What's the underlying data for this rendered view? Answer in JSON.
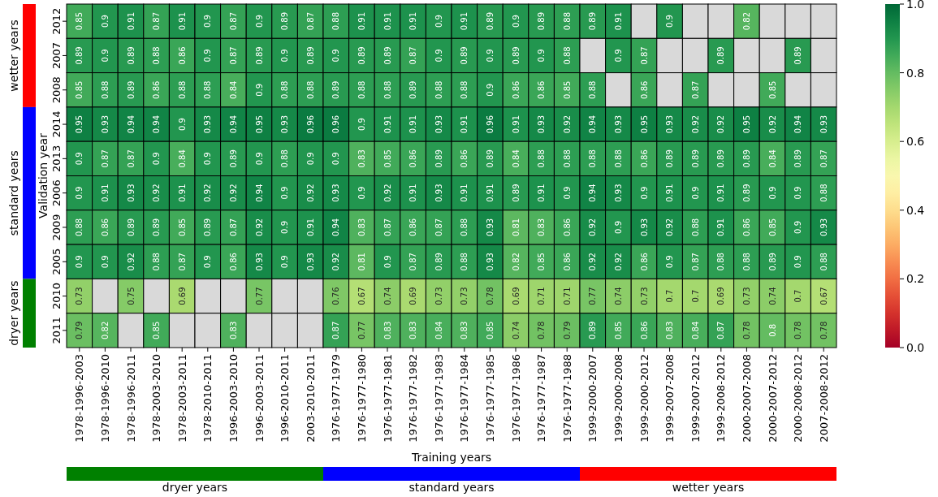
{
  "chart_data": {
    "type": "heatmap",
    "xlabel": "Training years",
    "ylabel": "Validation year",
    "categories": [
      "1978-1996-2003",
      "1978-1996-2010",
      "1978-1996-2011",
      "1978-2003-2010",
      "1978-2003-2011",
      "1978-2010-2011",
      "1996-2003-2010",
      "1996-2003-2011",
      "1996-2010-2011",
      "2003-2010-2011",
      "1976-1977-1979",
      "1976-1977-1980",
      "1976-1977-1981",
      "1976-1977-1982",
      "1976-1977-1983",
      "1976-1977-1984",
      "1976-1977-1985",
      "1976-1977-1986",
      "1976-1977-1987",
      "1976-1977-1988",
      "1999-2000-2007",
      "1999-2000-2008",
      "1999-2000-2012",
      "1999-2007-2008",
      "1999-2007-2012",
      "1999-2008-2012",
      "2000-2007-2008",
      "2000-2007-2012",
      "2000-2008-2012",
      "2007-2008-2012"
    ],
    "y_categories": [
      "2012",
      "2007",
      "2008",
      "2014",
      "2013",
      "2006",
      "2009",
      "2005",
      "2010",
      "2011"
    ],
    "cells": [
      [
        0.85,
        0.9,
        0.91,
        0.87,
        0.91,
        0.9,
        0.87,
        0.9,
        0.89,
        0.87,
        0.88,
        0.91,
        0.91,
        0.91,
        0.9,
        0.91,
        0.89,
        0.9,
        0.89,
        0.88,
        0.89,
        0.91,
        null,
        0.9,
        null,
        null,
        0.82,
        null,
        null,
        null
      ],
      [
        0.89,
        0.9,
        0.89,
        0.88,
        0.86,
        0.9,
        0.87,
        0.89,
        0.9,
        0.89,
        0.9,
        0.89,
        0.89,
        0.87,
        0.9,
        0.89,
        0.9,
        0.89,
        0.9,
        0.88,
        null,
        0.9,
        0.87,
        null,
        null,
        0.89,
        null,
        null,
        0.89,
        null
      ],
      [
        0.85,
        0.88,
        0.89,
        0.86,
        0.88,
        0.88,
        0.84,
        0.9,
        0.88,
        0.88,
        0.89,
        0.88,
        0.88,
        0.89,
        0.88,
        0.88,
        0.9,
        0.86,
        0.86,
        0.85,
        0.88,
        null,
        0.86,
        null,
        0.87,
        null,
        null,
        0.85,
        null,
        null
      ],
      [
        0.95,
        0.93,
        0.94,
        0.94,
        0.9,
        0.93,
        0.94,
        0.95,
        0.93,
        0.96,
        0.96,
        0.9,
        0.91,
        0.91,
        0.93,
        0.91,
        0.96,
        0.91,
        0.93,
        0.92,
        0.94,
        0.93,
        0.95,
        0.93,
        0.92,
        0.92,
        0.95,
        0.92,
        0.94,
        0.93
      ],
      [
        0.9,
        0.87,
        0.87,
        0.9,
        0.84,
        0.9,
        0.89,
        0.9,
        0.88,
        0.9,
        0.9,
        0.83,
        0.85,
        0.86,
        0.89,
        0.86,
        0.89,
        0.84,
        0.88,
        0.88,
        0.88,
        0.88,
        0.86,
        0.89,
        0.89,
        0.89,
        0.89,
        0.84,
        0.89,
        0.87
      ],
      [
        0.9,
        0.91,
        0.93,
        0.92,
        0.91,
        0.92,
        0.92,
        0.94,
        0.9,
        0.92,
        0.93,
        0.9,
        0.92,
        0.91,
        0.93,
        0.91,
        0.91,
        0.89,
        0.91,
        0.9,
        0.94,
        0.93,
        0.9,
        0.91,
        0.9,
        0.91,
        0.89,
        0.9,
        0.9,
        0.88
      ],
      [
        0.88,
        0.86,
        0.89,
        0.89,
        0.85,
        0.89,
        0.87,
        0.92,
        0.9,
        0.91,
        0.94,
        0.83,
        0.87,
        0.86,
        0.87,
        0.88,
        0.93,
        0.81,
        0.83,
        0.86,
        0.92,
        0.9,
        0.93,
        0.92,
        0.88,
        0.91,
        0.86,
        0.85,
        0.9,
        0.93
      ],
      [
        0.9,
        0.9,
        0.92,
        0.88,
        0.87,
        0.9,
        0.86,
        0.93,
        0.9,
        0.93,
        0.92,
        0.81,
        0.9,
        0.87,
        0.89,
        0.88,
        0.93,
        0.82,
        0.85,
        0.86,
        0.92,
        0.92,
        0.86,
        0.9,
        0.87,
        0.88,
        0.88,
        0.89,
        0.9,
        0.88
      ],
      [
        0.73,
        null,
        0.75,
        null,
        0.69,
        null,
        null,
        0.77,
        null,
        null,
        0.76,
        0.67,
        0.74,
        0.69,
        0.73,
        0.73,
        0.78,
        0.69,
        0.71,
        0.71,
        0.77,
        0.74,
        0.73,
        0.7,
        0.7,
        0.69,
        0.73,
        0.74,
        0.7,
        0.67
      ],
      [
        0.79,
        0.82,
        null,
        0.85,
        null,
        null,
        0.83,
        null,
        null,
        null,
        0.87,
        0.77,
        0.83,
        0.83,
        0.84,
        0.83,
        0.85,
        0.74,
        0.78,
        0.79,
        0.89,
        0.85,
        0.86,
        0.83,
        0.84,
        0.87,
        0.78,
        0.8,
        0.78,
        0.78
      ]
    ],
    "clim": [
      0,
      1
    ],
    "cticks": [
      {
        "value": 0,
        "label": "0.0"
      },
      {
        "value": 0.2,
        "label": "0.2"
      },
      {
        "value": 0.4,
        "label": "0.4"
      },
      {
        "value": 0.6,
        "label": "0.6"
      },
      {
        "value": 0.8,
        "label": "0.8"
      },
      {
        "value": 1,
        "label": "1.0"
      }
    ],
    "data_labels": true,
    "annotations": [
      "wetter years",
      "standard years",
      "dryer years",
      "dryer years",
      "standard years",
      "wetter years"
    ]
  }
}
